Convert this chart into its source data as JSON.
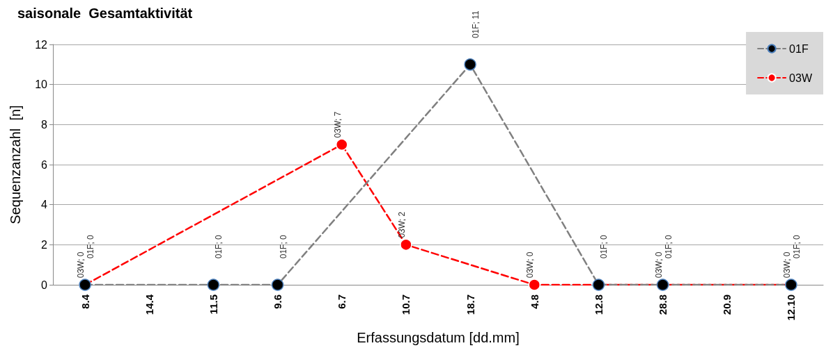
{
  "chart_data": {
    "type": "line",
    "title": "saisonale  Gesamtaktivität",
    "xlabel": "Erfassungsdatum [dd.mm]",
    "ylabel": "Sequenzanzahl  [n]",
    "categories": [
      "8.4",
      "14.4",
      "11.5",
      "9.6",
      "6.7",
      "10.7",
      "18.7",
      "4.8",
      "12.8",
      "28.8",
      "20.9",
      "12.10"
    ],
    "series": [
      {
        "name": "03W",
        "color": "#ff0000",
        "values": [
          0,
          null,
          null,
          null,
          7,
          2,
          null,
          0,
          null,
          0,
          null,
          0
        ],
        "value_labels": [
          "03W; 0",
          null,
          null,
          null,
          "03W; 7",
          "03W; 2",
          null,
          "03W; 0",
          null,
          "03W; 0",
          null,
          "03W; 0"
        ]
      },
      {
        "name": "01F",
        "color": "#808080",
        "values": [
          0,
          null,
          0,
          0,
          null,
          null,
          11,
          null,
          0,
          0,
          null,
          0
        ],
        "value_labels": [
          "01F; 0",
          null,
          "01F; 0",
          "01F; 0",
          null,
          null,
          "01F; 11",
          null,
          "01F; 0",
          "01F; 0",
          null,
          "01F; 0"
        ]
      }
    ],
    "ylim": [
      0,
      12
    ],
    "yticks": [
      0,
      2,
      4,
      6,
      8,
      10,
      12
    ],
    "grid": "y",
    "legend": "top right",
    "marker": "circle",
    "line_style": "dashed"
  }
}
